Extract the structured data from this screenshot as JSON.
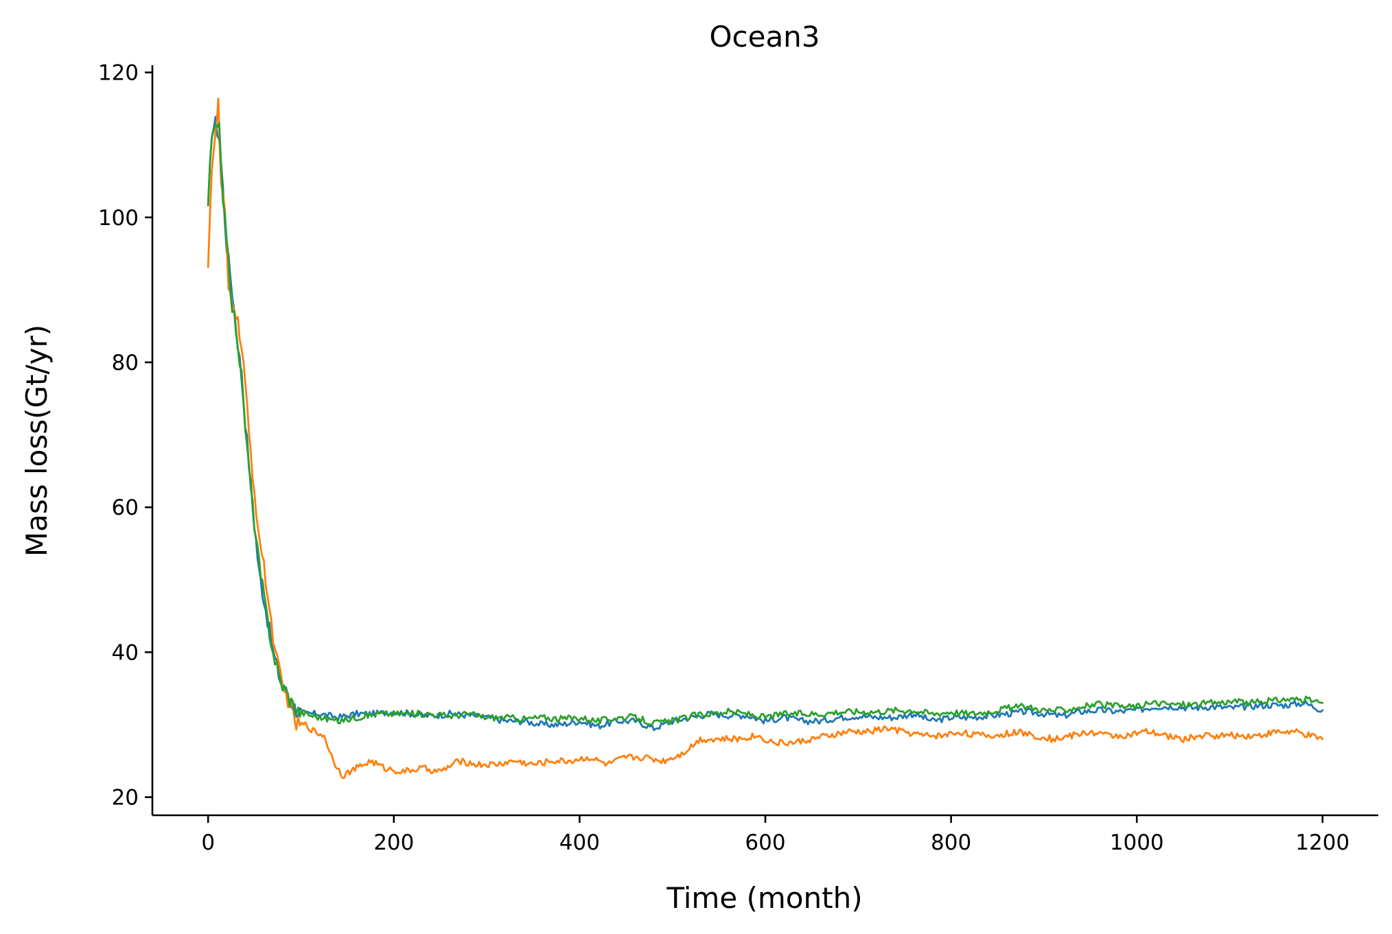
{
  "chart_data": {
    "type": "line",
    "title": "Ocean3",
    "xlabel": "Time (month)",
    "ylabel": "Mass loss(Gt/yr)",
    "xlim": [
      -60,
      1260
    ],
    "ylim": [
      17.5,
      121
    ],
    "xticks": [
      0,
      200,
      400,
      600,
      800,
      1000,
      1200
    ],
    "yticks": [
      20,
      40,
      60,
      80,
      100,
      120
    ],
    "grid": false,
    "legend": "none",
    "series": [
      {
        "color": "#1f77b4",
        "points": [
          [
            0,
            101
          ],
          [
            4,
            112
          ],
          [
            8,
            113
          ],
          [
            12,
            111
          ],
          [
            16,
            104
          ],
          [
            20,
            96
          ],
          [
            24,
            92
          ],
          [
            30,
            85
          ],
          [
            36,
            78
          ],
          [
            42,
            69
          ],
          [
            48,
            60
          ],
          [
            55,
            51
          ],
          [
            62,
            46
          ],
          [
            70,
            40
          ],
          [
            78,
            36
          ],
          [
            86,
            34
          ],
          [
            95,
            32
          ],
          [
            105,
            31.5
          ],
          [
            120,
            31.5
          ],
          [
            140,
            31
          ],
          [
            160,
            31.5
          ],
          [
            180,
            31.5
          ],
          [
            200,
            31.8
          ],
          [
            220,
            31.5
          ],
          [
            240,
            31.2
          ],
          [
            260,
            31.5
          ],
          [
            280,
            31.3
          ],
          [
            300,
            31
          ],
          [
            320,
            30.5
          ],
          [
            340,
            30.5
          ],
          [
            360,
            30
          ],
          [
            380,
            30
          ],
          [
            400,
            30.5
          ],
          [
            420,
            29.8
          ],
          [
            440,
            30.5
          ],
          [
            460,
            30.5
          ],
          [
            480,
            29.5
          ],
          [
            500,
            30.5
          ],
          [
            520,
            31
          ],
          [
            540,
            31.5
          ],
          [
            560,
            31.3
          ],
          [
            580,
            31.3
          ],
          [
            600,
            30.5
          ],
          [
            620,
            31
          ],
          [
            640,
            30.5
          ],
          [
            660,
            30.5
          ],
          [
            680,
            31
          ],
          [
            700,
            31.2
          ],
          [
            720,
            31
          ],
          [
            740,
            31
          ],
          [
            760,
            31.5
          ],
          [
            780,
            30.5
          ],
          [
            800,
            31
          ],
          [
            820,
            31
          ],
          [
            840,
            31.2
          ],
          [
            860,
            31.5
          ],
          [
            880,
            31.8
          ],
          [
            900,
            31.5
          ],
          [
            920,
            31.2
          ],
          [
            940,
            31.8
          ],
          [
            960,
            32
          ],
          [
            980,
            31.8
          ],
          [
            1000,
            32
          ],
          [
            1020,
            32.5
          ],
          [
            1040,
            32.5
          ],
          [
            1060,
            32.3
          ],
          [
            1080,
            32.5
          ],
          [
            1100,
            32.3
          ],
          [
            1120,
            32.5
          ],
          [
            1140,
            32.7
          ],
          [
            1160,
            32.7
          ],
          [
            1180,
            33
          ],
          [
            1200,
            32
          ]
        ]
      },
      {
        "color": "#ff7f0e",
        "points": [
          [
            0,
            94
          ],
          [
            4,
            107
          ],
          [
            8,
            111
          ],
          [
            11,
            116
          ],
          [
            14,
            104
          ],
          [
            18,
            101
          ],
          [
            22,
            90
          ],
          [
            28,
            88
          ],
          [
            34,
            84
          ],
          [
            38,
            80
          ],
          [
            44,
            70
          ],
          [
            50,
            62
          ],
          [
            56,
            55
          ],
          [
            62,
            50
          ],
          [
            68,
            44
          ],
          [
            74,
            39
          ],
          [
            80,
            35
          ],
          [
            88,
            33
          ],
          [
            95,
            30
          ],
          [
            105,
            30
          ],
          [
            115,
            29
          ],
          [
            125,
            28.5
          ],
          [
            135,
            25
          ],
          [
            145,
            23
          ],
          [
            160,
            24
          ],
          [
            175,
            25
          ],
          [
            190,
            24
          ],
          [
            210,
            23.5
          ],
          [
            230,
            24
          ],
          [
            250,
            23.5
          ],
          [
            270,
            25
          ],
          [
            290,
            24.5
          ],
          [
            310,
            24.5
          ],
          [
            330,
            25
          ],
          [
            350,
            24.5
          ],
          [
            370,
            25
          ],
          [
            390,
            25
          ],
          [
            410,
            25.5
          ],
          [
            430,
            24.5
          ],
          [
            450,
            25.5
          ],
          [
            470,
            25.5
          ],
          [
            490,
            25
          ],
          [
            510,
            26
          ],
          [
            530,
            28
          ],
          [
            550,
            28
          ],
          [
            570,
            28
          ],
          [
            590,
            28.5
          ],
          [
            610,
            27.5
          ],
          [
            630,
            27.5
          ],
          [
            650,
            28
          ],
          [
            670,
            28.5
          ],
          [
            690,
            29
          ],
          [
            710,
            29
          ],
          [
            730,
            29.5
          ],
          [
            750,
            29
          ],
          [
            770,
            28.5
          ],
          [
            790,
            28.5
          ],
          [
            810,
            29
          ],
          [
            830,
            28.5
          ],
          [
            850,
            28.5
          ],
          [
            870,
            29
          ],
          [
            890,
            28.5
          ],
          [
            910,
            28
          ],
          [
            930,
            28.5
          ],
          [
            950,
            29
          ],
          [
            970,
            28.5
          ],
          [
            990,
            28.5
          ],
          [
            1010,
            29
          ],
          [
            1030,
            28.5
          ],
          [
            1050,
            28
          ],
          [
            1070,
            28.5
          ],
          [
            1090,
            28.5
          ],
          [
            1110,
            28.5
          ],
          [
            1130,
            28.5
          ],
          [
            1150,
            29
          ],
          [
            1170,
            29
          ],
          [
            1185,
            28.5
          ],
          [
            1200,
            28
          ]
        ]
      },
      {
        "color": "#2ca02c",
        "points": [
          [
            0,
            102
          ],
          [
            4,
            111
          ],
          [
            8,
            112
          ],
          [
            12,
            112
          ],
          [
            16,
            103
          ],
          [
            20,
            98
          ],
          [
            24,
            89
          ],
          [
            30,
            85
          ],
          [
            36,
            78
          ],
          [
            42,
            68
          ],
          [
            48,
            60
          ],
          [
            55,
            52
          ],
          [
            62,
            46
          ],
          [
            70,
            40
          ],
          [
            78,
            36
          ],
          [
            86,
            34
          ],
          [
            95,
            32
          ],
          [
            105,
            31.5
          ],
          [
            120,
            31
          ],
          [
            140,
            30.5
          ],
          [
            160,
            31
          ],
          [
            180,
            31.5
          ],
          [
            200,
            31.5
          ],
          [
            220,
            31.5
          ],
          [
            240,
            31.5
          ],
          [
            260,
            31.2
          ],
          [
            280,
            31.5
          ],
          [
            300,
            31
          ],
          [
            320,
            31
          ],
          [
            340,
            30.8
          ],
          [
            360,
            31
          ],
          [
            380,
            30.8
          ],
          [
            400,
            31
          ],
          [
            420,
            30.5
          ],
          [
            440,
            31
          ],
          [
            460,
            31
          ],
          [
            480,
            30.2
          ],
          [
            500,
            30.5
          ],
          [
            520,
            31.2
          ],
          [
            540,
            31.5
          ],
          [
            560,
            31.8
          ],
          [
            580,
            31.5
          ],
          [
            600,
            31
          ],
          [
            620,
            31.5
          ],
          [
            640,
            31.5
          ],
          [
            660,
            31.5
          ],
          [
            680,
            31.8
          ],
          [
            700,
            31.8
          ],
          [
            720,
            31.8
          ],
          [
            740,
            32
          ],
          [
            760,
            32
          ],
          [
            780,
            31.5
          ],
          [
            800,
            31.8
          ],
          [
            820,
            31.5
          ],
          [
            840,
            31.8
          ],
          [
            860,
            32.3
          ],
          [
            880,
            32.5
          ],
          [
            900,
            32
          ],
          [
            920,
            32
          ],
          [
            940,
            32.5
          ],
          [
            960,
            32.8
          ],
          [
            980,
            32.5
          ],
          [
            1000,
            32.5
          ],
          [
            1020,
            33
          ],
          [
            1040,
            32.8
          ],
          [
            1060,
            32.8
          ],
          [
            1080,
            33
          ],
          [
            1100,
            33.2
          ],
          [
            1120,
            33
          ],
          [
            1140,
            33.2
          ],
          [
            1160,
            33.5
          ],
          [
            1180,
            33.5
          ],
          [
            1200,
            33
          ]
        ]
      }
    ]
  }
}
